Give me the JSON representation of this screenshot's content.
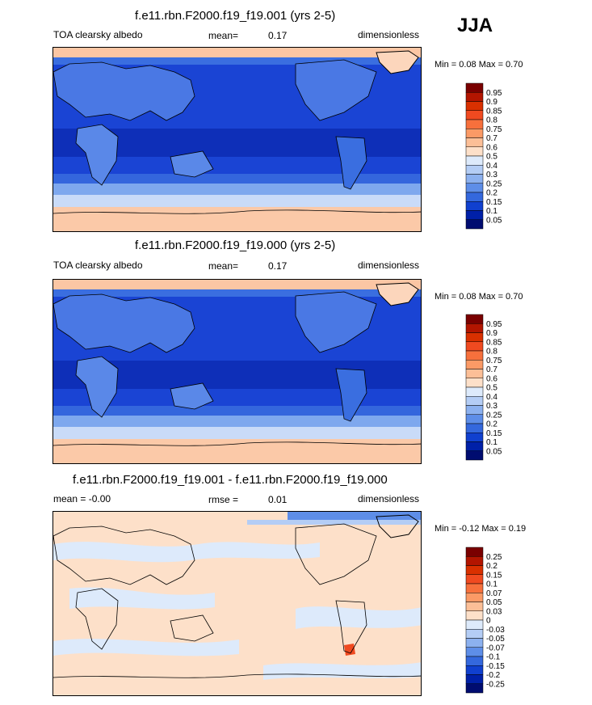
{
  "season": "JJA",
  "panels": [
    {
      "title": "f.e11.rbn.F2000.f19_f19.001 (yrs 2-5)",
      "left_label": "TOA clearsky albedo",
      "stat_label": "mean=",
      "stat_value": "0.17",
      "units": "dimensionless",
      "minmax": "Min =  0.08 Max =  0.70",
      "colorbar_levels": [
        "0.95",
        "0.9",
        "0.85",
        "0.8",
        "0.75",
        "0.7",
        "0.6",
        "0.5",
        "0.4",
        "0.3",
        "0.25",
        "0.2",
        "0.15",
        "0.1",
        "0.05"
      ],
      "colorbar_colors": [
        "#7a0000",
        "#b31500",
        "#d93000",
        "#f04a20",
        "#f7703c",
        "#fb9a66",
        "#fcbf97",
        "#fde0c9",
        "#ddeafb",
        "#b4cdf5",
        "#8cb1ef",
        "#5e8ee8",
        "#3468dd",
        "#1040cf",
        "#0020a8",
        "#000c70"
      ]
    },
    {
      "title": "f.e11.rbn.F2000.f19_f19.000 (yrs 2-5)",
      "left_label": "TOA clearsky albedo",
      "stat_label": "mean=",
      "stat_value": "0.17",
      "units": "dimensionless",
      "minmax": "Min =  0.08 Max =  0.70",
      "colorbar_levels": [
        "0.95",
        "0.9",
        "0.85",
        "0.8",
        "0.75",
        "0.7",
        "0.6",
        "0.5",
        "0.4",
        "0.3",
        "0.25",
        "0.2",
        "0.15",
        "0.1",
        "0.05"
      ],
      "colorbar_colors": [
        "#7a0000",
        "#b31500",
        "#d93000",
        "#f04a20",
        "#f7703c",
        "#fb9a66",
        "#fcbf97",
        "#fde0c9",
        "#ddeafb",
        "#b4cdf5",
        "#8cb1ef",
        "#5e8ee8",
        "#3468dd",
        "#1040cf",
        "#0020a8",
        "#000c70"
      ]
    },
    {
      "title": "f.e11.rbn.F2000.f19_f19.001 - f.e11.rbn.F2000.f19_f19.000",
      "left_label": "mean =  -0.00",
      "stat_label": "rmse =",
      "stat_value": "0.01",
      "units": "dimensionless",
      "minmax": "Min =  -0.12 Max =  0.19",
      "colorbar_levels": [
        "0.25",
        "0.2",
        "0.15",
        "0.1",
        "0.07",
        "0.05",
        "0.03",
        "0",
        "-0.03",
        "-0.05",
        "-0.07",
        "-0.1",
        "-0.15",
        "-0.2",
        "-0.25"
      ],
      "colorbar_colors": [
        "#7a0000",
        "#b31500",
        "#d93000",
        "#f04a20",
        "#f7703c",
        "#fb9a66",
        "#fcbf97",
        "#fde0c9",
        "#ddeafb",
        "#b4cdf5",
        "#8cb1ef",
        "#5e8ee8",
        "#3468dd",
        "#1040cf",
        "#0020a8",
        "#000c70"
      ]
    }
  ],
  "chart_data": [
    {
      "type": "heatmap",
      "title": "f.e11.rbn.F2000.f19_f19.001 (yrs 2-5)",
      "variable": "TOA clearsky albedo",
      "season": "JJA",
      "units": "dimensionless",
      "mean": 0.17,
      "min": 0.08,
      "max": 0.7,
      "contour_levels": [
        0.05,
        0.1,
        0.15,
        0.2,
        0.25,
        0.3,
        0.4,
        0.5,
        0.6,
        0.7,
        0.75,
        0.8,
        0.85,
        0.9,
        0.95
      ]
    },
    {
      "type": "heatmap",
      "title": "f.e11.rbn.F2000.f19_f19.000 (yrs 2-5)",
      "variable": "TOA clearsky albedo",
      "season": "JJA",
      "units": "dimensionless",
      "mean": 0.17,
      "min": 0.08,
      "max": 0.7,
      "contour_levels": [
        0.05,
        0.1,
        0.15,
        0.2,
        0.25,
        0.3,
        0.4,
        0.5,
        0.6,
        0.7,
        0.75,
        0.8,
        0.85,
        0.9,
        0.95
      ]
    },
    {
      "type": "heatmap",
      "title": "f.e11.rbn.F2000.f19_f19.001 - f.e11.rbn.F2000.f19_f19.000",
      "season": "JJA",
      "units": "dimensionless",
      "mean": -0.0,
      "rmse": 0.01,
      "min": -0.12,
      "max": 0.19,
      "contour_levels": [
        -0.25,
        -0.2,
        -0.15,
        -0.1,
        -0.07,
        -0.05,
        -0.03,
        0,
        0.03,
        0.05,
        0.07,
        0.1,
        0.15,
        0.2,
        0.25
      ]
    }
  ]
}
